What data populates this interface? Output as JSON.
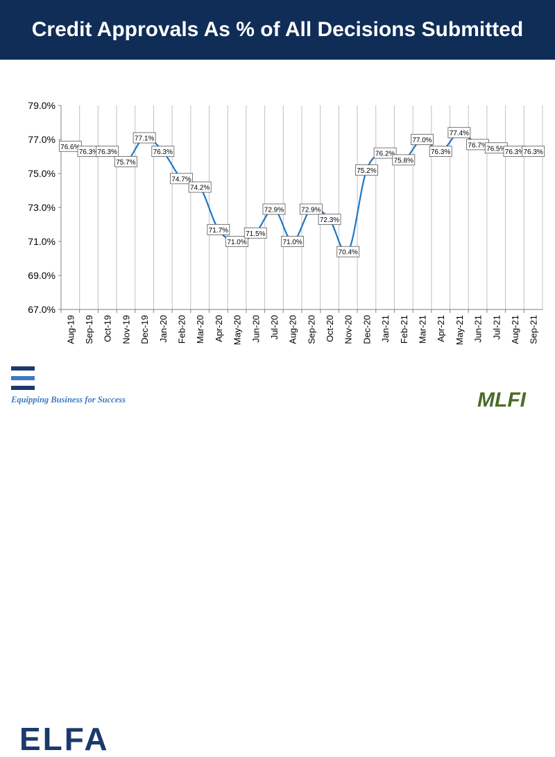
{
  "header": {
    "title": "Credit Approvals As % of All Decisions Submitted"
  },
  "logos": {
    "elfa_text": "ELFA",
    "elfa_tagline": "Equipping Business for Success",
    "mlfi_text": "MLFI"
  },
  "colors": {
    "header_bg": "#0f2d57",
    "line": "#1f77c4",
    "grid": "#c0c0c0"
  },
  "chart_data": {
    "type": "line",
    "title": "Credit Approvals As % of All Decisions Submitted",
    "xlabel": "",
    "ylabel": "",
    "ylim": [
      67.0,
      79.0
    ],
    "yticks": [
      "79.0%",
      "77.0%",
      "75.0%",
      "73.0%",
      "71.0%",
      "69.0%",
      "67.0%"
    ],
    "ytick_values": [
      79,
      77,
      75,
      73,
      71,
      69,
      67
    ],
    "categories": [
      "Aug-19",
      "Sep-19",
      "Oct-19",
      "Nov-19",
      "Dec-19",
      "Jan-20",
      "Feb-20",
      "Mar-20",
      "Apr-20",
      "May-20",
      "Jun-20",
      "Jul-20",
      "Aug-20",
      "Sep-20",
      "Oct-20",
      "Nov-20",
      "Dec-20",
      "Jan-21",
      "Feb-21",
      "Mar-21",
      "Apr-21",
      "May-21",
      "Jun-21",
      "Jul-21",
      "Aug-21",
      "Sep-21"
    ],
    "series": [
      {
        "name": "Credit Approvals",
        "values": [
          76.6,
          76.3,
          76.3,
          75.7,
          77.1,
          76.3,
          74.7,
          74.2,
          71.7,
          71.0,
          71.5,
          72.9,
          71.0,
          72.9,
          72.3,
          70.4,
          75.2,
          76.2,
          75.8,
          77.0,
          76.3,
          77.4,
          76.7,
          76.5,
          76.3,
          76.3
        ],
        "labels": [
          "76.6%",
          "76.3%",
          "76.3%",
          "75.7%",
          "77.1%",
          "76.3%",
          "74.7%",
          "74.2%",
          "71.7%",
          "71.0%",
          "71.5%",
          "72.9%",
          "71.0%",
          "72.9%",
          "72.3%",
          "70.4%",
          "75.2%",
          "76.2%",
          "75.8%",
          "77.0%",
          "76.3%",
          "77.4%",
          "76.7%",
          "76.5%",
          "76.3%",
          "76.3%"
        ]
      }
    ]
  }
}
